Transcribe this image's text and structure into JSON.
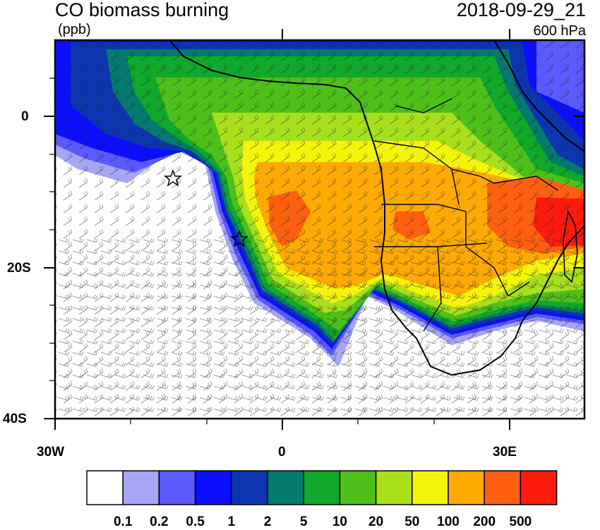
{
  "header": {
    "title": "CO biomass burning",
    "units": "(ppb)",
    "datetime": "2018-09-29_21",
    "level": "600 hPa"
  },
  "axes": {
    "y_labels": [
      "0",
      "20S",
      "40S"
    ],
    "x_labels": [
      "30W",
      "0",
      "30E"
    ]
  },
  "colorbar": {
    "labels": [
      "0.1",
      "0.2",
      "0.5",
      "1",
      "2",
      "5",
      "10",
      "20",
      "50",
      "100",
      "200",
      "500"
    ],
    "colors": [
      "#ffffff",
      "#a6a6f5",
      "#5a5aff",
      "#0a10ff",
      "#0b36b0",
      "#057a6e",
      "#10a82a",
      "#4fc01a",
      "#a8e01c",
      "#f4f40a",
      "#ffaa00",
      "#ff6010",
      "#ff1a10"
    ]
  }
}
